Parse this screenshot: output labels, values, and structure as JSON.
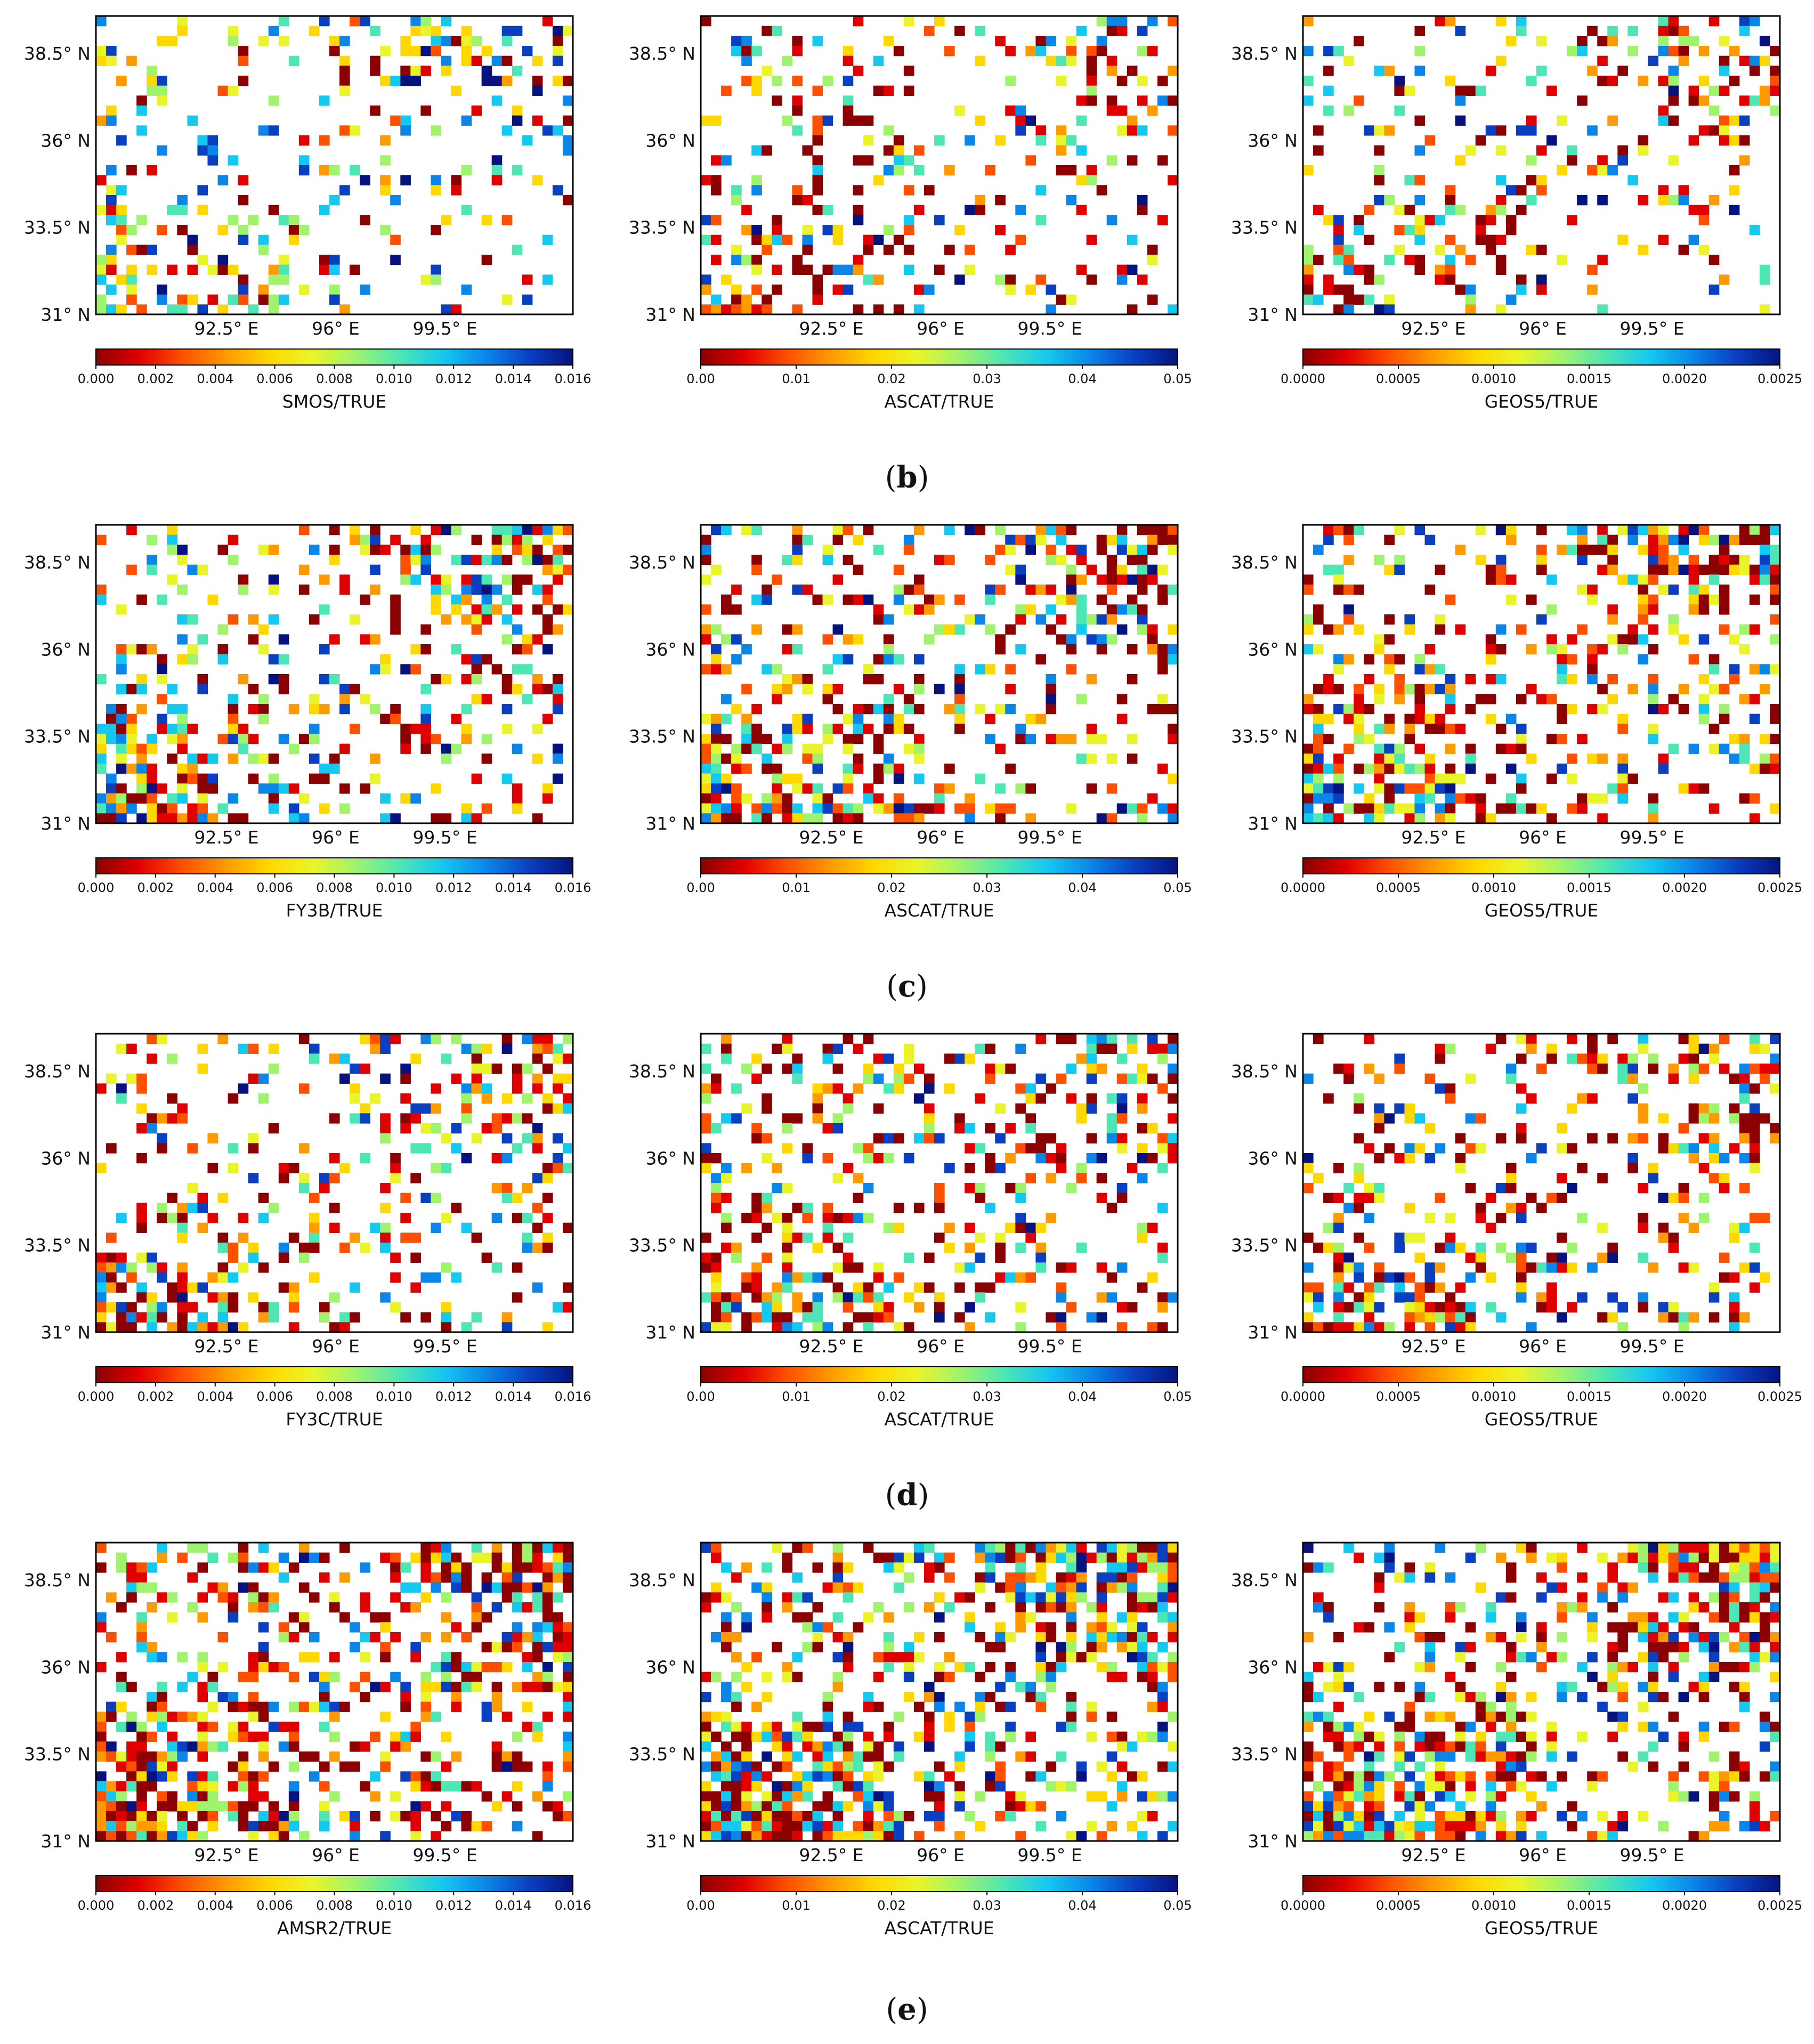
{
  "figure_title": "",
  "colors": {
    "scale": [
      "#8b0000",
      "#e00000",
      "#ff5000",
      "#ff9a00",
      "#ffd800",
      "#e9f52a",
      "#9ff36d",
      "#4ee6b4",
      "#15c8f0",
      "#0b86e8",
      "#0a3fc0",
      "#06137f"
    ],
    "axis": "#000000",
    "cell_stroke": "none"
  },
  "chart_data": [
    {
      "id": "a1",
      "row": 0,
      "col": 0,
      "type": "heatmap",
      "title": "SMOS/TRUE",
      "colorbar_label": "SMOS/TRUE",
      "colorbar_ticks": [
        "0.000",
        "0.002",
        "0.004",
        "0.006",
        "0.008",
        "0.010",
        "0.012",
        "0.014",
        "0.016"
      ],
      "vmin": 0,
      "vmax": 0.016,
      "density": 0.28,
      "seed": 11,
      "high_bias": 0.55,
      "xlabels": [
        "92.5° E",
        "96° E",
        "99.5° E"
      ],
      "ylabels": [
        "38.5° N",
        "36° N",
        "33.5° N",
        "31° N"
      ]
    },
    {
      "id": "a2",
      "row": 0,
      "col": 1,
      "type": "heatmap",
      "title": "ASCAT/TRUE",
      "colorbar_label": "ASCAT/TRUE",
      "colorbar_ticks": [
        "0.00",
        "0.01",
        "0.02",
        "0.03",
        "0.04",
        "0.05"
      ],
      "vmin": 0,
      "vmax": 0.05,
      "density": 0.27,
      "seed": 12,
      "high_bias": 0.12,
      "xlabels": [
        "92.5° E",
        "96° E",
        "99.5° E"
      ],
      "ylabels": [
        "38.5° N",
        "36° N",
        "33.5° N",
        "31° N"
      ]
    },
    {
      "id": "a3",
      "row": 0,
      "col": 2,
      "type": "heatmap",
      "title": "GEOS5/TRUE",
      "colorbar_label": "GEOS5/TRUE",
      "colorbar_ticks": [
        "0.0000",
        "0.0005",
        "0.0010",
        "0.0015",
        "0.0020",
        "0.0025"
      ],
      "vmin": 0,
      "vmax": 0.0025,
      "density": 0.28,
      "seed": 13,
      "high_bias": 0.2,
      "xlabels": [
        "92.5° E",
        "96° E",
        "99.5° E"
      ],
      "ylabels": [
        "38.5° N",
        "36° N",
        "33.5° N",
        "31° N"
      ]
    },
    {
      "id": "b1",
      "row": 1,
      "col": 0,
      "type": "heatmap",
      "title": "FY3B/TRUE",
      "colorbar_label": "FY3B/TRUE",
      "colorbar_ticks": [
        "0.000",
        "0.002",
        "0.004",
        "0.006",
        "0.008",
        "0.010",
        "0.012",
        "0.014",
        "0.016"
      ],
      "vmin": 0,
      "vmax": 0.016,
      "density": 0.42,
      "seed": 21,
      "high_bias": 0.28,
      "xlabels": [
        "92.5° E",
        "96° E",
        "99.5° E"
      ],
      "ylabels": [
        "38.5° N",
        "36° N",
        "33.5° N",
        "31° N"
      ]
    },
    {
      "id": "b2",
      "row": 1,
      "col": 1,
      "type": "heatmap",
      "title": "ASCAT/TRUE",
      "colorbar_label": "ASCAT/TRUE",
      "colorbar_ticks": [
        "0.00",
        "0.01",
        "0.02",
        "0.03",
        "0.04",
        "0.05"
      ],
      "vmin": 0,
      "vmax": 0.05,
      "density": 0.46,
      "seed": 22,
      "high_bias": 0.15,
      "xlabels": [
        "92.5° E",
        "96° E",
        "99.5° E"
      ],
      "ylabels": [
        "38.5° N",
        "36° N",
        "33.5° N",
        "31° N"
      ]
    },
    {
      "id": "b3",
      "row": 1,
      "col": 2,
      "type": "heatmap",
      "title": "GEOS5/TRUE",
      "colorbar_label": "GEOS5/TRUE",
      "colorbar_ticks": [
        "0.0000",
        "0.0005",
        "0.0010",
        "0.0015",
        "0.0020",
        "0.0025"
      ],
      "vmin": 0,
      "vmax": 0.0025,
      "density": 0.46,
      "seed": 23,
      "high_bias": 0.1,
      "xlabels": [
        "92.5° E",
        "96° E",
        "99.5° E"
      ],
      "ylabels": [
        "38.5° N",
        "36° N",
        "33.5° N",
        "31° N"
      ]
    },
    {
      "id": "c1",
      "row": 2,
      "col": 0,
      "type": "heatmap",
      "title": "FY3C/TRUE",
      "colorbar_label": "FY3C/TRUE",
      "colorbar_ticks": [
        "0.000",
        "0.002",
        "0.004",
        "0.006",
        "0.008",
        "0.010",
        "0.012",
        "0.014",
        "0.016"
      ],
      "vmin": 0,
      "vmax": 0.016,
      "density": 0.36,
      "seed": 31,
      "high_bias": 0.22,
      "xlabels": [
        "92.5° E",
        "96° E",
        "99.5° E"
      ],
      "ylabels": [
        "38.5° N",
        "36° N",
        "33.5° N",
        "31° N"
      ]
    },
    {
      "id": "c2",
      "row": 2,
      "col": 1,
      "type": "heatmap",
      "title": "ASCAT/TRUE",
      "colorbar_label": "ASCAT/TRUE",
      "colorbar_ticks": [
        "0.00",
        "0.01",
        "0.02",
        "0.03",
        "0.04",
        "0.05"
      ],
      "vmin": 0,
      "vmax": 0.05,
      "density": 0.4,
      "seed": 32,
      "high_bias": 0.12,
      "xlabels": [
        "92.5° E",
        "96° E",
        "99.5° E"
      ],
      "ylabels": [
        "38.5° N",
        "36° N",
        "33.5° N",
        "31° N"
      ]
    },
    {
      "id": "c3",
      "row": 2,
      "col": 2,
      "type": "heatmap",
      "title": "GEOS5/TRUE",
      "colorbar_label": "GEOS5/TRUE",
      "colorbar_ticks": [
        "0.0000",
        "0.0005",
        "0.0010",
        "0.0015",
        "0.0020",
        "0.0025"
      ],
      "vmin": 0,
      "vmax": 0.0025,
      "density": 0.38,
      "seed": 33,
      "high_bias": 0.12,
      "xlabels": [
        "92.5° E",
        "96° E",
        "99.5° E"
      ],
      "ylabels": [
        "38.5° N",
        "36° N",
        "33.5° N",
        "31° N"
      ]
    },
    {
      "id": "d1",
      "row": 3,
      "col": 0,
      "type": "heatmap",
      "title": "AMSR2/TRUE",
      "colorbar_label": "AMSR2/TRUE",
      "colorbar_ticks": [
        "0.000",
        "0.002",
        "0.004",
        "0.006",
        "0.008",
        "0.010",
        "0.012",
        "0.014",
        "0.016"
      ],
      "vmin": 0,
      "vmax": 0.016,
      "density": 0.55,
      "seed": 41,
      "high_bias": 0.04,
      "xlabels": [
        "92.5° E",
        "96° E",
        "99.5° E"
      ],
      "ylabels": [
        "38.5° N",
        "36° N",
        "33.5° N",
        "31° N"
      ]
    },
    {
      "id": "d2",
      "row": 3,
      "col": 1,
      "type": "heatmap",
      "title": "ASCAT/TRUE",
      "colorbar_label": "ASCAT/TRUE",
      "colorbar_ticks": [
        "0.00",
        "0.01",
        "0.02",
        "0.03",
        "0.04",
        "0.05"
      ],
      "vmin": 0,
      "vmax": 0.05,
      "density": 0.6,
      "seed": 42,
      "high_bias": 0.3,
      "xlabels": [
        "92.5° E",
        "96° E",
        "99.5° E"
      ],
      "ylabels": [
        "38.5° N",
        "36° N",
        "33.5° N",
        "31° N"
      ]
    },
    {
      "id": "d3",
      "row": 3,
      "col": 2,
      "type": "heatmap",
      "title": "GEOS5/TRUE",
      "colorbar_label": "GEOS5/TRUE",
      "colorbar_ticks": [
        "0.0000",
        "0.0005",
        "0.0010",
        "0.0015",
        "0.0020",
        "0.0025"
      ],
      "vmin": 0,
      "vmax": 0.0025,
      "density": 0.56,
      "seed": 43,
      "high_bias": 0.24,
      "xlabels": [
        "92.5° E",
        "96° E",
        "99.5° E"
      ],
      "ylabels": [
        "38.5° N",
        "36° N",
        "33.5° N",
        "31° N"
      ]
    }
  ],
  "subfigure_labels": [
    "(b)",
    "(c)",
    "(d)",
    "(e)"
  ]
}
